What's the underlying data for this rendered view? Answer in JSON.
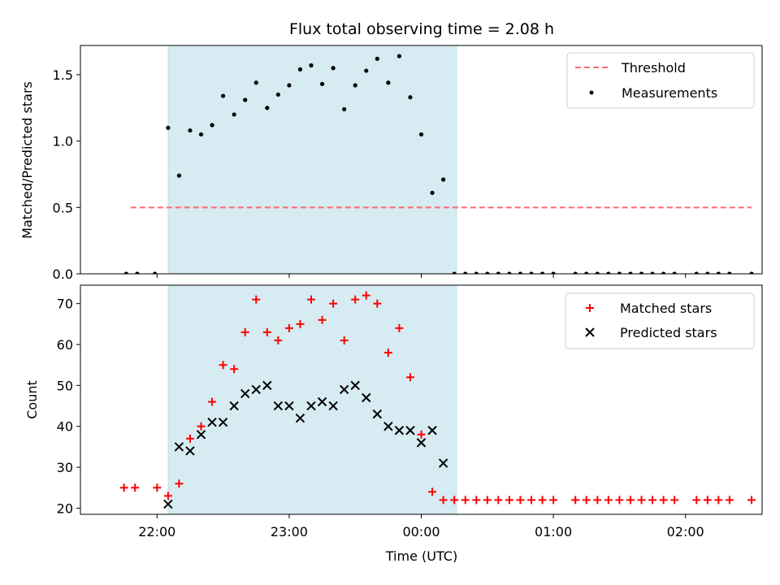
{
  "figure_title": "Flux total observing time = 2.08 h",
  "chart_data": [
    {
      "type": "scatter",
      "ylabel": "Matched/Predicted stars",
      "ylim": [
        0,
        1.72
      ],
      "yticks": [
        "0.0",
        "0.5",
        "1.0",
        "1.5"
      ],
      "ytick_values": [
        0,
        0.5,
        1.0,
        1.5
      ],
      "xlim_hours": [
        21.42,
        26.58
      ],
      "shaded_span": [
        "22:05",
        "00:16"
      ],
      "shaded_color": "#add8e6",
      "legend_position": "top-right",
      "threshold": {
        "name": "Threshold",
        "y": 0.5,
        "x_start": "21:48",
        "x_end": "02:30",
        "color": "#ff6b6b"
      },
      "series": [
        {
          "name": "Measurements",
          "marker": "dot",
          "color": "#000000",
          "points": [
            [
              "21:46",
              0
            ],
            [
              "21:51",
              0
            ],
            [
              "21:59",
              0
            ],
            [
              "22:05",
              1.1
            ],
            [
              "22:10",
              0.74
            ],
            [
              "22:15",
              1.08
            ],
            [
              "22:20",
              1.05
            ],
            [
              "22:25",
              1.12
            ],
            [
              "22:30",
              1.34
            ],
            [
              "22:35",
              1.2
            ],
            [
              "22:40",
              1.31
            ],
            [
              "22:45",
              1.44
            ],
            [
              "22:50",
              1.25
            ],
            [
              "22:55",
              1.35
            ],
            [
              "23:00",
              1.42
            ],
            [
              "23:05",
              1.54
            ],
            [
              "23:10",
              1.57
            ],
            [
              "23:15",
              1.43
            ],
            [
              "23:20",
              1.55
            ],
            [
              "23:25",
              1.24
            ],
            [
              "23:30",
              1.42
            ],
            [
              "23:35",
              1.53
            ],
            [
              "23:40",
              1.62
            ],
            [
              "23:45",
              1.44
            ],
            [
              "23:50",
              1.64
            ],
            [
              "23:55",
              1.33
            ],
            [
              "00:00",
              1.05
            ],
            [
              "00:05",
              0.61
            ],
            [
              "00:10",
              0.71
            ],
            [
              "00:15",
              0
            ],
            [
              "00:20",
              0
            ],
            [
              "00:25",
              0
            ],
            [
              "00:30",
              0
            ],
            [
              "00:35",
              0
            ],
            [
              "00:40",
              0
            ],
            [
              "00:45",
              0
            ],
            [
              "00:50",
              0
            ],
            [
              "00:55",
              0
            ],
            [
              "01:00",
              0
            ],
            [
              "01:10",
              0
            ],
            [
              "01:15",
              0
            ],
            [
              "01:20",
              0
            ],
            [
              "01:25",
              0
            ],
            [
              "01:30",
              0
            ],
            [
              "01:35",
              0
            ],
            [
              "01:40",
              0
            ],
            [
              "01:45",
              0
            ],
            [
              "01:50",
              0
            ],
            [
              "01:55",
              0
            ],
            [
              "02:05",
              0
            ],
            [
              "02:10",
              0
            ],
            [
              "02:15",
              0
            ],
            [
              "02:20",
              0
            ],
            [
              "02:30",
              0
            ]
          ]
        }
      ]
    },
    {
      "type": "scatter",
      "xlabel": "Time (UTC)",
      "ylabel": "Count",
      "ylim": [
        18.5,
        74.5
      ],
      "yticks": [
        "20",
        "30",
        "40",
        "50",
        "60",
        "70"
      ],
      "ytick_values": [
        20,
        30,
        40,
        50,
        60,
        70
      ],
      "xticks": [
        "22:00",
        "23:00",
        "00:00",
        "01:00",
        "02:00"
      ],
      "xtick_hours": [
        22,
        23,
        24,
        25,
        26
      ],
      "xlim_hours": [
        21.42,
        26.58
      ],
      "shaded_span": [
        "22:05",
        "00:16"
      ],
      "shaded_color": "#add8e6",
      "legend_position": "top-right",
      "series": [
        {
          "name": "Matched stars",
          "marker": "plus",
          "color": "#ff0000",
          "points": [
            [
              "21:45",
              25
            ],
            [
              "21:50",
              25
            ],
            [
              "22:00",
              25
            ],
            [
              "22:05",
              23
            ],
            [
              "22:10",
              26
            ],
            [
              "22:15",
              37
            ],
            [
              "22:20",
              40
            ],
            [
              "22:25",
              46
            ],
            [
              "22:30",
              55
            ],
            [
              "22:35",
              54
            ],
            [
              "22:40",
              63
            ],
            [
              "22:45",
              71
            ],
            [
              "22:50",
              63
            ],
            [
              "22:55",
              61
            ],
            [
              "23:00",
              64
            ],
            [
              "23:05",
              65
            ],
            [
              "23:10",
              71
            ],
            [
              "23:15",
              66
            ],
            [
              "23:20",
              70
            ],
            [
              "23:25",
              61
            ],
            [
              "23:30",
              71
            ],
            [
              "23:35",
              72
            ],
            [
              "23:40",
              70
            ],
            [
              "23:45",
              58
            ],
            [
              "23:50",
              64
            ],
            [
              "23:55",
              52
            ],
            [
              "00:00",
              38
            ],
            [
              "00:05",
              24
            ],
            [
              "00:10",
              22
            ],
            [
              "00:15",
              22
            ],
            [
              "00:20",
              22
            ],
            [
              "00:25",
              22
            ],
            [
              "00:30",
              22
            ],
            [
              "00:35",
              22
            ],
            [
              "00:40",
              22
            ],
            [
              "00:45",
              22
            ],
            [
              "00:50",
              22
            ],
            [
              "00:55",
              22
            ],
            [
              "01:00",
              22
            ],
            [
              "01:10",
              22
            ],
            [
              "01:15",
              22
            ],
            [
              "01:20",
              22
            ],
            [
              "01:25",
              22
            ],
            [
              "01:30",
              22
            ],
            [
              "01:35",
              22
            ],
            [
              "01:40",
              22
            ],
            [
              "01:45",
              22
            ],
            [
              "01:50",
              22
            ],
            [
              "01:55",
              22
            ],
            [
              "02:05",
              22
            ],
            [
              "02:10",
              22
            ],
            [
              "02:15",
              22
            ],
            [
              "02:20",
              22
            ],
            [
              "02:30",
              22
            ]
          ]
        },
        {
          "name": "Predicted stars",
          "marker": "x",
          "color": "#000000",
          "points": [
            [
              "22:05",
              21
            ],
            [
              "22:10",
              35
            ],
            [
              "22:15",
              34
            ],
            [
              "22:20",
              38
            ],
            [
              "22:25",
              41
            ],
            [
              "22:30",
              41
            ],
            [
              "22:35",
              45
            ],
            [
              "22:40",
              48
            ],
            [
              "22:45",
              49
            ],
            [
              "22:50",
              50
            ],
            [
              "22:55",
              45
            ],
            [
              "23:00",
              45
            ],
            [
              "23:05",
              42
            ],
            [
              "23:10",
              45
            ],
            [
              "23:15",
              46
            ],
            [
              "23:20",
              45
            ],
            [
              "23:25",
              49
            ],
            [
              "23:30",
              50
            ],
            [
              "23:35",
              47
            ],
            [
              "23:40",
              43
            ],
            [
              "23:45",
              40
            ],
            [
              "23:50",
              39
            ],
            [
              "23:55",
              39
            ],
            [
              "00:00",
              36
            ],
            [
              "00:05",
              39
            ],
            [
              "00:10",
              31
            ]
          ]
        }
      ]
    }
  ]
}
